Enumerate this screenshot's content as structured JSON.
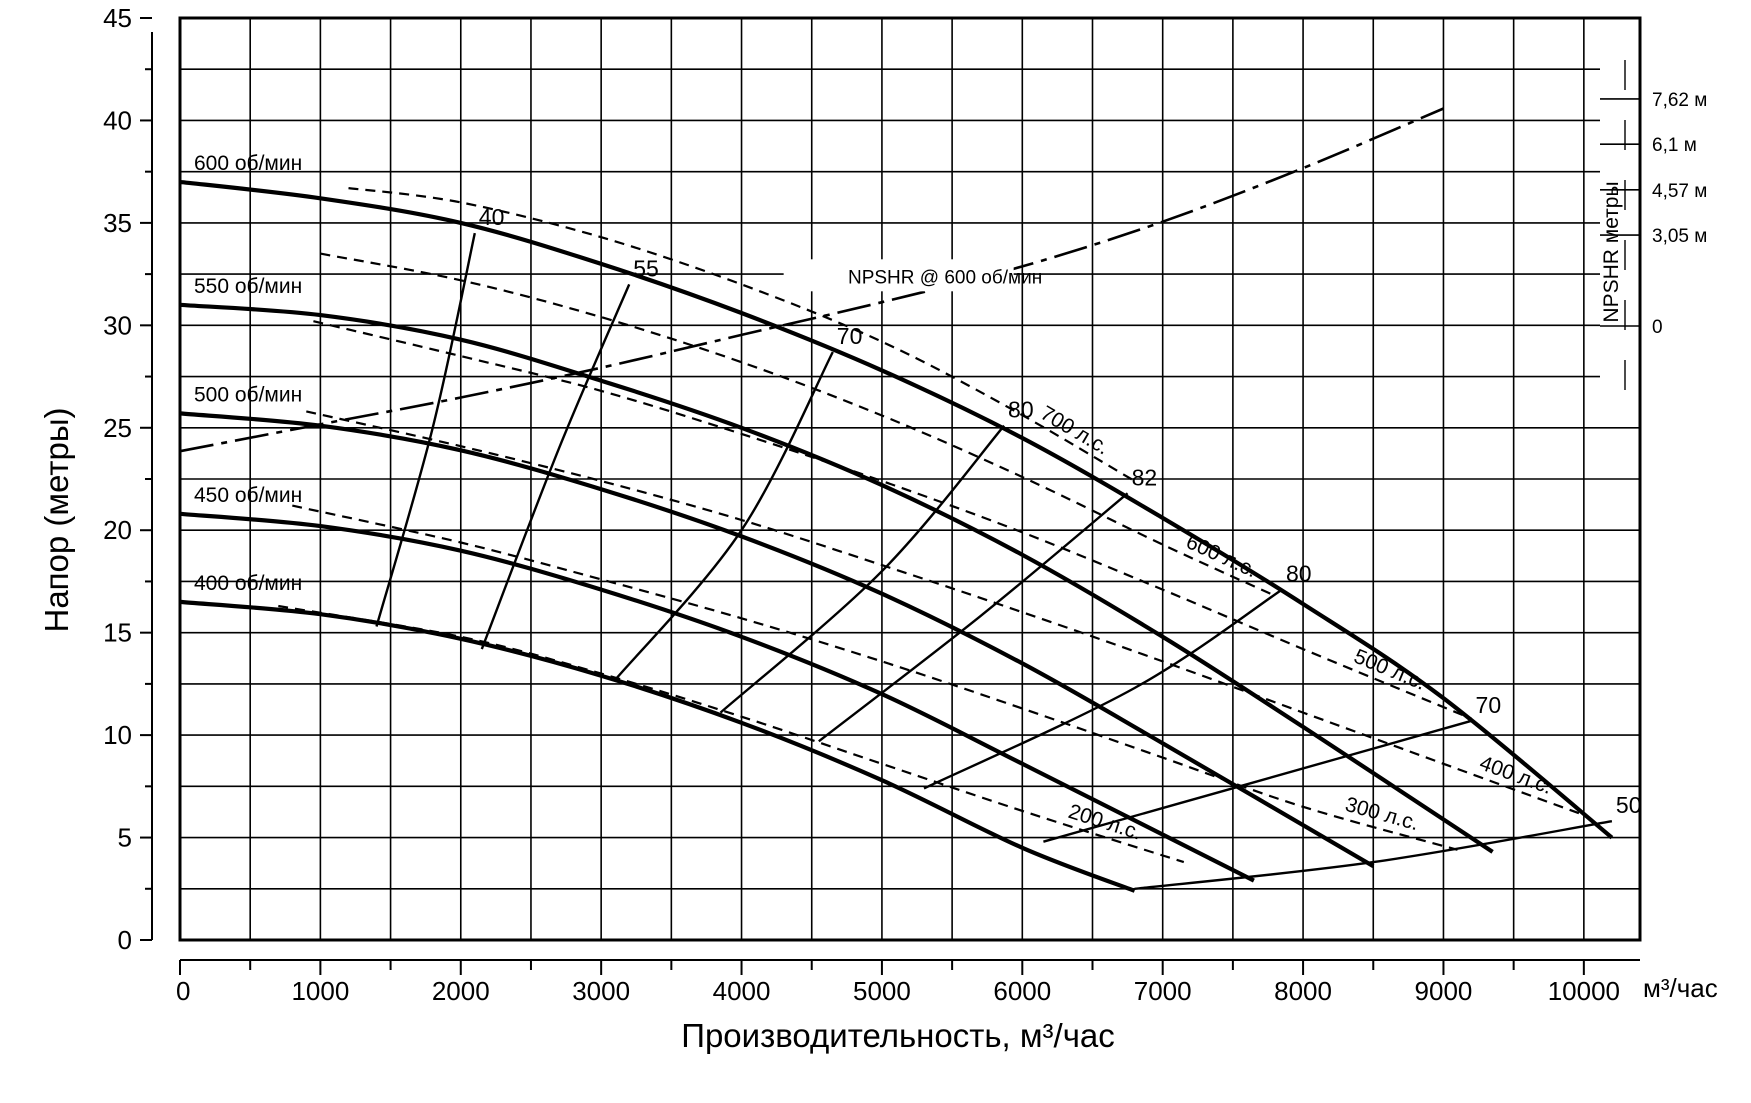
{
  "chart_data": {
    "type": "line",
    "title": "",
    "xlabel": "Производительность, м³/час",
    "xunit": "м³/час",
    "ylabel": "Напор (метры)",
    "xlim": [
      0,
      10400
    ],
    "ylim": [
      0,
      45
    ],
    "xticks": [
      0,
      1000,
      2000,
      3000,
      4000,
      5000,
      6000,
      7000,
      8000,
      9000,
      10000
    ],
    "xtick_labels": [
      "0",
      "1000",
      "2000",
      "3000",
      "4000",
      "5000",
      "6000",
      "7000",
      "8000",
      "9000",
      "10000"
    ],
    "yticks": [
      0,
      5,
      10,
      15,
      20,
      25,
      30,
      35,
      40,
      45
    ],
    "ytick_labels": [
      "0",
      "5",
      "10",
      "15",
      "20",
      "25",
      "30",
      "35",
      "40",
      "45"
    ],
    "grid": true,
    "speed_curves": [
      {
        "name": "600 об/мин",
        "x": [
          0,
          1000,
          2000,
          3000,
          4000,
          5000,
          6000,
          7000,
          8000,
          9000,
          10200
        ],
        "y": [
          37,
          36.2,
          35,
          33,
          30.6,
          27.8,
          24.5,
          20.6,
          16.4,
          11.8,
          5
        ]
      },
      {
        "name": "550 об/мин",
        "x": [
          0,
          1000,
          2000,
          3000,
          4000,
          5000,
          6000,
          7000,
          8000,
          9350
        ],
        "y": [
          31,
          30.5,
          29.3,
          27.3,
          25,
          22.2,
          18.8,
          14.8,
          10.4,
          4.3
        ]
      },
      {
        "name": "500 об/мин",
        "x": [
          0,
          1000,
          2000,
          3000,
          4000,
          5000,
          6000,
          7000,
          8500
        ],
        "y": [
          25.7,
          25.1,
          23.9,
          22,
          19.7,
          16.9,
          13.5,
          9.6,
          3.6
        ]
      },
      {
        "name": "450 об/мин",
        "x": [
          0,
          1000,
          2000,
          3000,
          4000,
          5000,
          6000,
          7650
        ],
        "y": [
          20.8,
          20.2,
          19,
          17.1,
          14.8,
          12,
          8.6,
          2.9
        ]
      },
      {
        "name": "400 об/мин",
        "x": [
          0,
          1000,
          2000,
          3000,
          4000,
          5000,
          6000,
          6800
        ],
        "y": [
          16.5,
          15.9,
          14.7,
          12.9,
          10.6,
          7.8,
          4.5,
          2.4
        ]
      }
    ],
    "efficiency_curves": [
      {
        "label": "40",
        "x": [
          1400,
          1800,
          2100
        ],
        "y": [
          15.3,
          25,
          34.5
        ]
      },
      {
        "label": "55",
        "x": [
          2150,
          2700,
          3200
        ],
        "y": [
          14.2,
          24,
          32
        ]
      },
      {
        "label": "70",
        "x": [
          3100,
          4000,
          4650
        ],
        "y": [
          12.7,
          20,
          28.7
        ]
      },
      {
        "label": "80",
        "x": [
          3850,
          5000,
          5870
        ],
        "y": [
          11.1,
          18,
          25.1
        ]
      },
      {
        "label": "82",
        "x": [
          4550,
          5700,
          6750
        ],
        "y": [
          9.7,
          15.8,
          21.8
        ]
      },
      {
        "label": "80",
        "x": [
          5300,
          6800,
          7850
        ],
        "y": [
          7.4,
          12.3,
          17.1
        ]
      },
      {
        "label": "70",
        "x": [
          6150,
          7600,
          9200
        ],
        "y": [
          4.8,
          7.6,
          10.7
        ]
      },
      {
        "label": "50",
        "x": [
          6800,
          8500,
          10200
        ],
        "y": [
          2.5,
          3.8,
          5.8
        ]
      }
    ],
    "power_curves": [
      {
        "label": "200 л.с.",
        "x": [
          700,
          2000,
          3000,
          4000,
          5000,
          6000,
          7150
        ],
        "y": [
          16.3,
          14.8,
          13,
          10.9,
          8.6,
          6.3,
          3.8
        ]
      },
      {
        "label": "300 л.с.",
        "x": [
          800,
          2000,
          3000,
          4000,
          5000,
          6000,
          7000,
          8000,
          9100
        ],
        "y": [
          21.2,
          19.4,
          17.6,
          15.7,
          13.6,
          11.3,
          8.9,
          6.5,
          4.4
        ]
      },
      {
        "label": "400 л.с.",
        "x": [
          900,
          2000,
          3000,
          4000,
          5000,
          6000,
          7000,
          8000,
          9000,
          10000
        ],
        "y": [
          25.8,
          24.1,
          22.4,
          20.5,
          18.3,
          16,
          13.6,
          11.1,
          8.6,
          6.1
        ]
      },
      {
        "label": "500 л.с.",
        "x": [
          950,
          2000,
          3000,
          4000,
          5000,
          6000,
          7000,
          8000,
          9200
        ],
        "y": [
          30.2,
          28.5,
          26.8,
          24.7,
          22.4,
          19.9,
          17.1,
          14.2,
          10.8
        ]
      },
      {
        "label": "600 л.с.",
        "x": [
          1000,
          2000,
          3000,
          4000,
          5000,
          6000,
          7000,
          7800
        ],
        "y": [
          33.5,
          32.2,
          30.4,
          28.2,
          25.6,
          22.6,
          19.3,
          16.8
        ]
      },
      {
        "label": "700 л.с.",
        "x": [
          1200,
          2000,
          3000,
          4000,
          5000,
          5900,
          6800
        ],
        "y": [
          36.7,
          36,
          34.3,
          32,
          29.2,
          26,
          22.4
        ]
      }
    ],
    "npshr_curve": {
      "label": "NPSHR @ 600 об/мин",
      "x": [
        0,
        1000,
        2000,
        3000,
        4000,
        5000,
        6000,
        7000,
        8000,
        9000
      ],
      "npshr": [
        -4.2,
        -3.3,
        -2.4,
        -1.4,
        -0.3,
        0.8,
        2,
        3.5,
        5.3,
        7.3
      ]
    },
    "npshr_axis": {
      "title": "NPSHR метры",
      "ticks": [
        0,
        3.05,
        4.57,
        6.1,
        7.62
      ],
      "tick_labels": [
        "0",
        "3,05 м",
        "4,57 м",
        "6,1 м",
        "7,62 м"
      ]
    }
  }
}
